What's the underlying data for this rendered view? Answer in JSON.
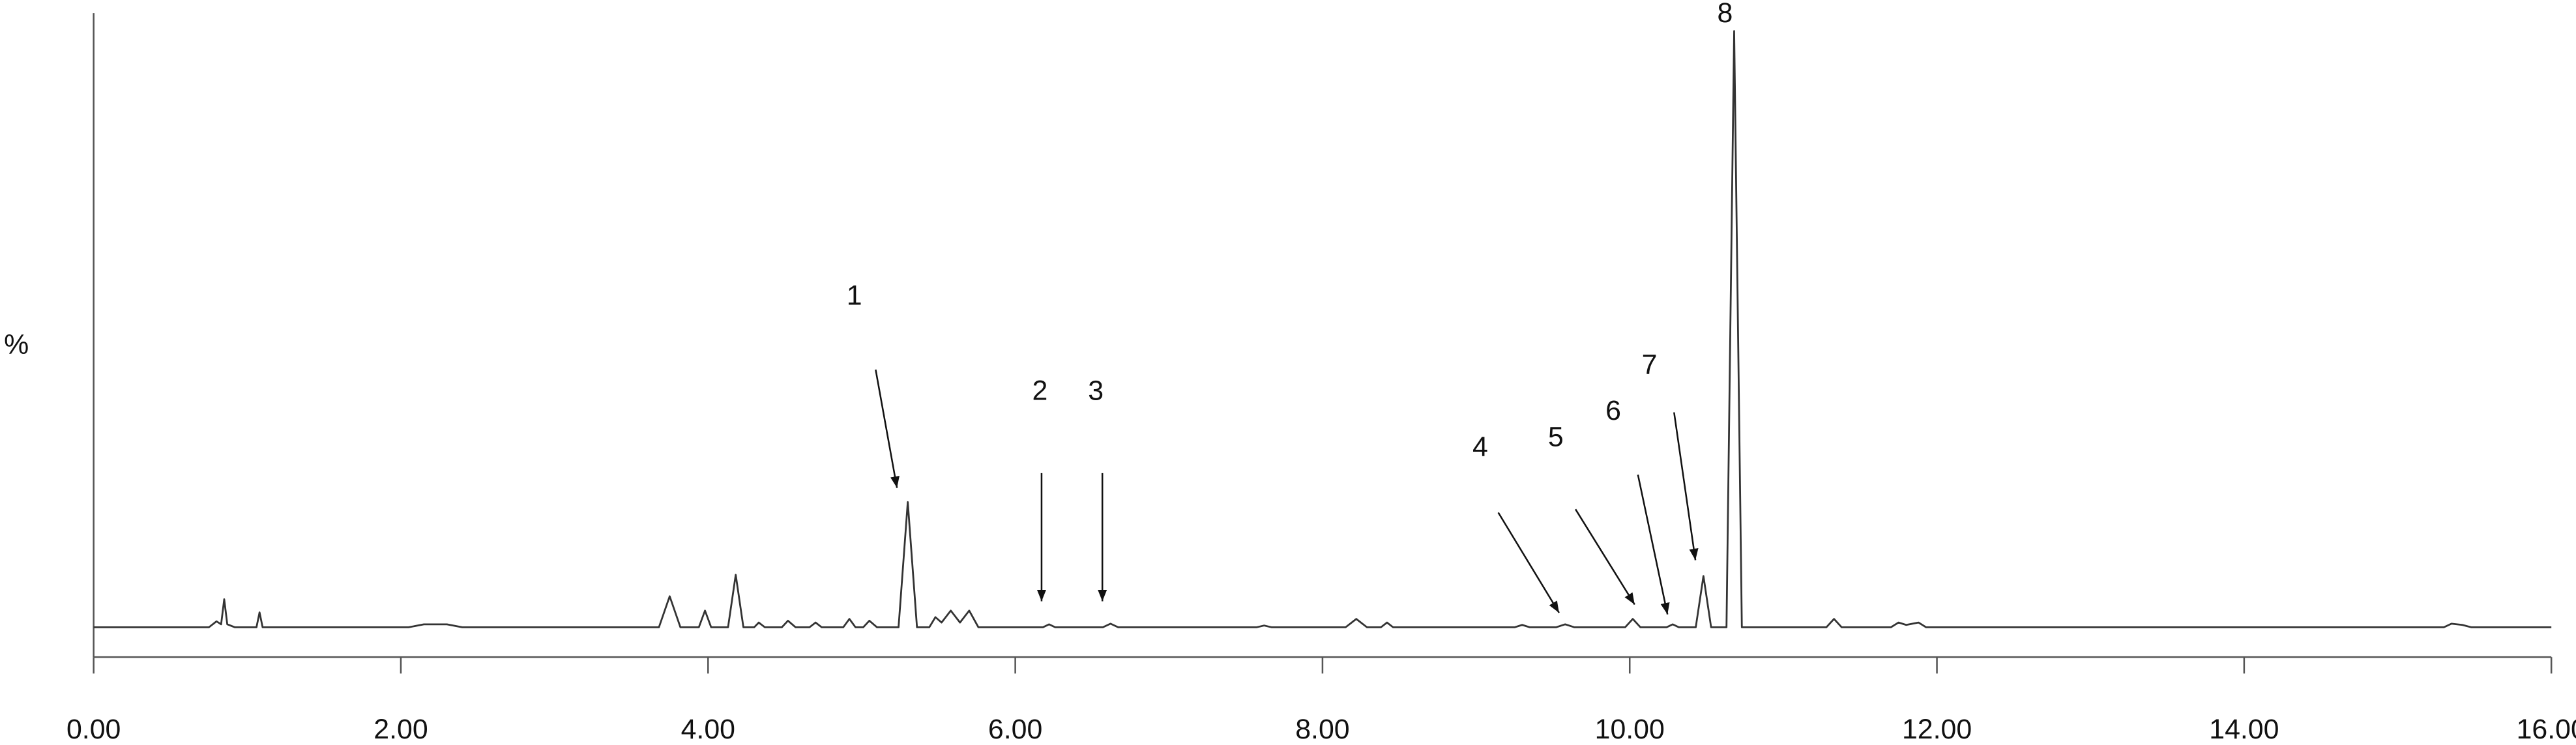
{
  "chart_data": {
    "type": "line",
    "ylabel": "%",
    "xlim": [
      0,
      16
    ],
    "ylim": [
      -5,
      103
    ],
    "xticks": [
      {
        "value": 0,
        "label": "0.00"
      },
      {
        "value": 2,
        "label": "2.00"
      },
      {
        "value": 4,
        "label": "4.00"
      },
      {
        "value": 6,
        "label": "6.00"
      },
      {
        "value": 8,
        "label": "8.00"
      },
      {
        "value": 10,
        "label": "10.00"
      },
      {
        "value": 12,
        "label": "12.00"
      },
      {
        "value": 14,
        "label": "14.00"
      },
      {
        "value": 16,
        "label": "16.00"
      }
    ],
    "series": [
      {
        "color": "#333333",
        "x": [
          0.0,
          0.75,
          0.8,
          0.83,
          0.85,
          0.87,
          0.92,
          1.06,
          1.08,
          1.1,
          2.05,
          2.15,
          2.3,
          2.4,
          3.68,
          3.75,
          3.82,
          3.94,
          3.98,
          4.02,
          4.13,
          4.18,
          4.23,
          4.3,
          4.33,
          4.37,
          4.48,
          4.52,
          4.57,
          4.66,
          4.7,
          4.74,
          4.88,
          4.92,
          4.96,
          5.01,
          5.05,
          5.1,
          5.24,
          5.3,
          5.36,
          5.44,
          5.48,
          5.52,
          5.58,
          5.64,
          5.7,
          5.76,
          6.18,
          6.22,
          6.26,
          6.57,
          6.62,
          6.67,
          7.57,
          7.62,
          7.67,
          8.15,
          8.22,
          8.29,
          8.38,
          8.42,
          8.46,
          9.25,
          9.3,
          9.35,
          9.52,
          9.58,
          9.64,
          9.97,
          10.02,
          10.07,
          10.24,
          10.28,
          10.32,
          10.43,
          10.48,
          10.53,
          10.63,
          10.68,
          10.73,
          11.28,
          11.33,
          11.38,
          11.7,
          11.75,
          11.8,
          11.88,
          11.93,
          15.3,
          15.35,
          15.42,
          15.48,
          16.0
        ],
        "values": [
          0,
          0,
          1,
          0.5,
          4.7,
          0.5,
          0,
          0,
          2.5,
          0,
          0,
          0.5,
          0.5,
          0,
          0,
          5.2,
          0,
          0,
          2.8,
          0,
          0,
          8.8,
          0,
          0,
          0.8,
          0,
          0,
          1.1,
          0,
          0,
          0.8,
          0,
          0,
          1.4,
          0,
          0,
          1.1,
          0,
          0,
          21,
          0,
          0,
          1.7,
          0.8,
          2.8,
          0.8,
          2.8,
          0,
          0,
          0.5,
          0,
          0,
          0.6,
          0,
          0,
          0.3,
          0,
          0,
          1.4,
          0,
          0,
          0.8,
          0,
          0,
          0.4,
          0,
          0,
          0.5,
          0,
          0,
          1.4,
          0,
          0,
          0.5,
          0,
          0,
          8.6,
          0,
          0,
          100,
          0,
          0,
          1.4,
          0,
          0,
          0.8,
          0.4,
          0.8,
          0,
          0,
          0.6,
          0.4,
          0,
          0
        ]
      }
    ],
    "annotations": [
      "1",
      "2",
      "3",
      "4",
      "5",
      "6",
      "7",
      "8"
    ]
  }
}
